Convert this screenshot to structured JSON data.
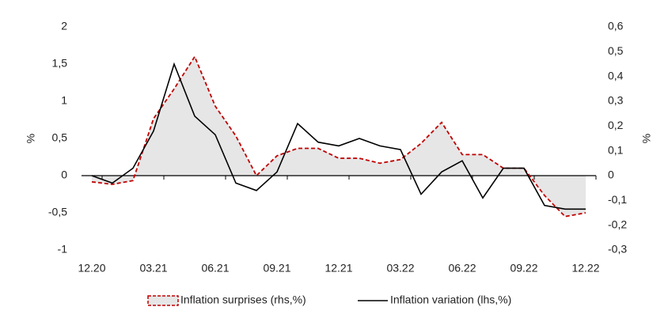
{
  "chart_data": {
    "type": "line",
    "categories": [
      "12.20",
      null,
      null,
      "03.21",
      null,
      null,
      "06.21",
      null,
      null,
      "09.21",
      null,
      null,
      "12.21",
      null,
      null,
      "03.22",
      null,
      null,
      "06.22",
      null,
      null,
      "09.22",
      null,
      null,
      "12.22"
    ],
    "series": [
      {
        "name": "Inflation surprises (rhs,%)",
        "color": "#c00000",
        "area_color": "#e6e6e6",
        "dashed": true,
        "axis": "y2",
        "values": [
          -0.025,
          -0.035,
          -0.02,
          0.23,
          0.35,
          0.48,
          0.28,
          0.16,
          0.0,
          0.08,
          0.11,
          0.11,
          0.07,
          0.07,
          0.05,
          0.065,
          0.13,
          0.215,
          0.085,
          0.085,
          0.03,
          0.03,
          -0.08,
          -0.165,
          -0.15
        ]
      },
      {
        "name": "Inflation variation (lhs,%)",
        "color": "#000000",
        "values": [
          0,
          -0.1,
          0.1,
          0.6,
          1.5,
          0.8,
          0.55,
          -0.1,
          -0.2,
          0.05,
          0.7,
          0.45,
          0.4,
          0.5,
          0.4,
          0.35,
          -0.25,
          0.05,
          0.2,
          -0.3,
          0.1,
          0.1,
          -0.4,
          -0.45,
          -0.45
        ]
      }
    ],
    "ylabel": "%",
    "y2label": "%",
    "ylim": [
      -1,
      2
    ],
    "yticks": [
      -1,
      {
        "value": -0.5,
        "label": "-0,5"
      },
      0,
      {
        "value": 0.5,
        "label": "0,5"
      },
      1,
      {
        "value": 1.5,
        "label": "1,5"
      },
      2
    ],
    "y2lim": [
      -0.3,
      0.6
    ],
    "y2ticks": [
      {
        "value": -0.3,
        "label": "-0,3"
      },
      {
        "value": -0.2,
        "label": "-0,2"
      },
      {
        "value": -0.1,
        "label": "-0,1"
      },
      0,
      {
        "value": 0.1,
        "label": "0,1"
      },
      {
        "value": 0.2,
        "label": "0,2"
      },
      {
        "value": 0.3,
        "label": "0,3"
      },
      {
        "value": 0.4,
        "label": "0,4"
      },
      {
        "value": 0.5,
        "label": "0,5"
      },
      {
        "value": 0.6,
        "label": "0,6"
      }
    ],
    "legend": "bottom"
  }
}
